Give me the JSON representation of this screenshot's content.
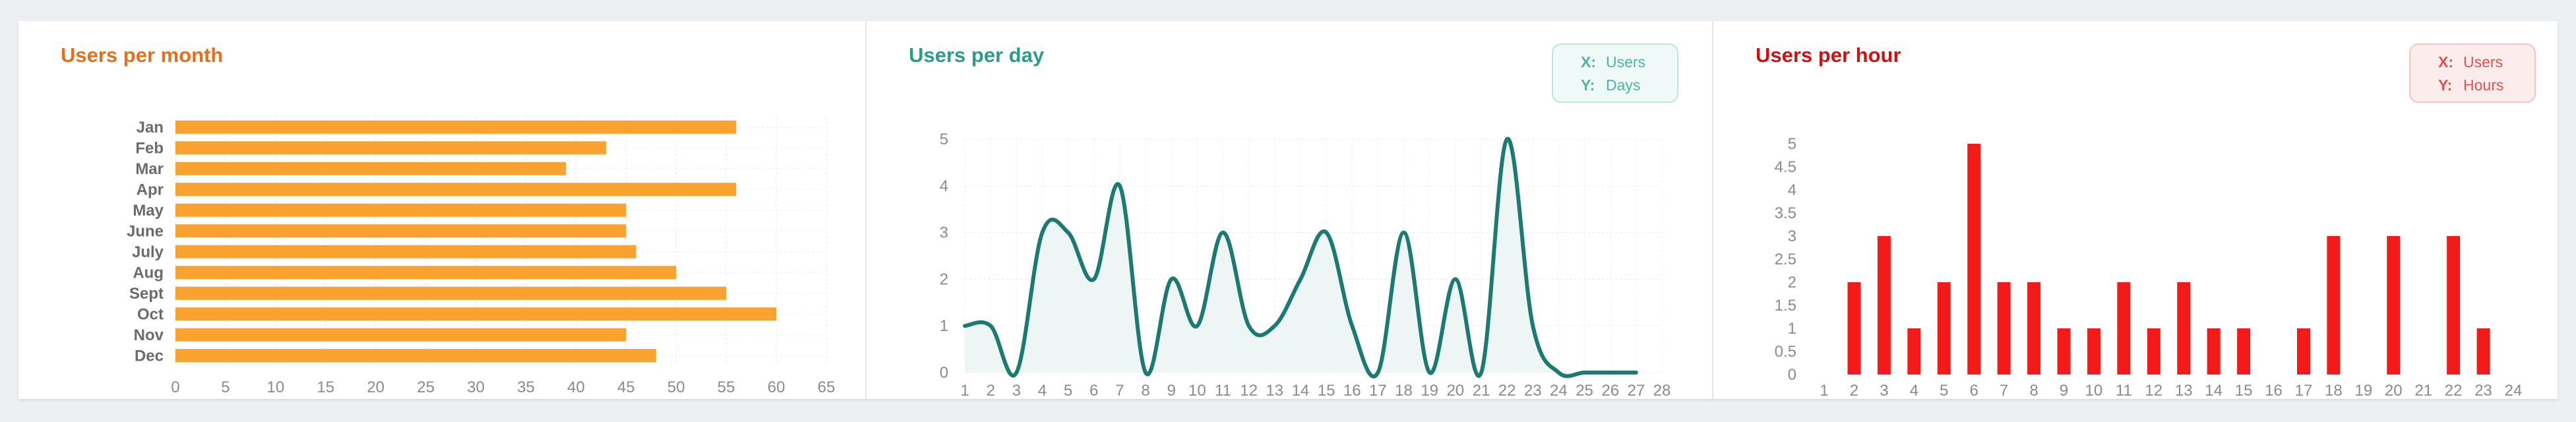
{
  "colors": {
    "orange": "#f9a22f",
    "orange_title": "#e46f1c",
    "teal": "#1d7a73",
    "teal_title": "#2b9c8c",
    "teal_fill": "#eef6f5",
    "red": "#f41a1a",
    "red_title": "#cc1212",
    "tick": "#8a8a8a",
    "cat": "#6b6b6b"
  },
  "charts": [
    {
      "title": "Users per month"
    },
    {
      "title": "Users per day",
      "legend": {
        "x_key": "X:",
        "x_value": "Users",
        "y_key": "Y:",
        "y_value": "Days"
      }
    },
    {
      "title": "Users per hour",
      "legend": {
        "x_key": "X:",
        "x_value": "Users",
        "y_key": "Y:",
        "y_value": "Hours"
      }
    }
  ],
  "chart_data": [
    {
      "type": "bar",
      "orientation": "horizontal",
      "title": "Users per month",
      "categories": [
        "Jan",
        "Feb",
        "Mar",
        "Apr",
        "May",
        "June",
        "July",
        "Aug",
        "Sept",
        "Oct",
        "Nov",
        "Dec"
      ],
      "values": [
        56,
        43,
        39,
        56,
        45,
        45,
        46,
        50,
        55,
        60,
        45,
        48
      ],
      "xlim": [
        0,
        65
      ],
      "xticks": [
        "0",
        "5",
        "10",
        "15",
        "20",
        "25",
        "30",
        "35",
        "40",
        "45",
        "50",
        "55",
        "60",
        "65"
      ],
      "grid": true
    },
    {
      "type": "area",
      "title": "Users per day",
      "x": [
        1,
        2,
        3,
        4,
        5,
        6,
        7,
        8,
        9,
        10,
        11,
        12,
        13,
        14,
        15,
        16,
        17,
        18,
        19,
        20,
        21,
        22,
        23,
        24,
        25,
        26,
        27,
        28
      ],
      "values": [
        1,
        1,
        0,
        3,
        3,
        2,
        4,
        0,
        2,
        1,
        3,
        1,
        1,
        2,
        3,
        1,
        0,
        3,
        0,
        2,
        0,
        5,
        1,
        0,
        0,
        0,
        0,
        null
      ],
      "ylim": [
        0,
        5
      ],
      "xticks": [
        "1",
        "2",
        "3",
        "4",
        "5",
        "6",
        "7",
        "8",
        "9",
        "10",
        "11",
        "12",
        "13",
        "14",
        "15",
        "16",
        "17",
        "18",
        "19",
        "20",
        "21",
        "22",
        "23",
        "24",
        "25",
        "26",
        "27",
        "28"
      ],
      "yticks": [
        "0",
        "1",
        "2",
        "3",
        "4",
        "5"
      ],
      "grid": true
    },
    {
      "type": "bar",
      "title": "Users per hour",
      "categories": [
        "1",
        "2",
        "3",
        "4",
        "5",
        "6",
        "7",
        "8",
        "9",
        "10",
        "11",
        "12",
        "13",
        "14",
        "15",
        "16",
        "17",
        "18",
        "19",
        "20",
        "21",
        "22",
        "23",
        "24"
      ],
      "values": [
        0,
        2,
        3,
        1,
        2,
        5,
        2,
        2,
        1,
        1,
        2,
        1,
        2,
        1,
        1,
        0,
        1,
        3,
        0,
        3,
        0,
        3,
        1,
        0
      ],
      "ylim": [
        0,
        5
      ],
      "yticks": [
        "0",
        "0.5",
        "1",
        "1.5",
        "2",
        "2.5",
        "3",
        "3.5",
        "4",
        "4.5",
        "5"
      ],
      "grid": false
    }
  ]
}
